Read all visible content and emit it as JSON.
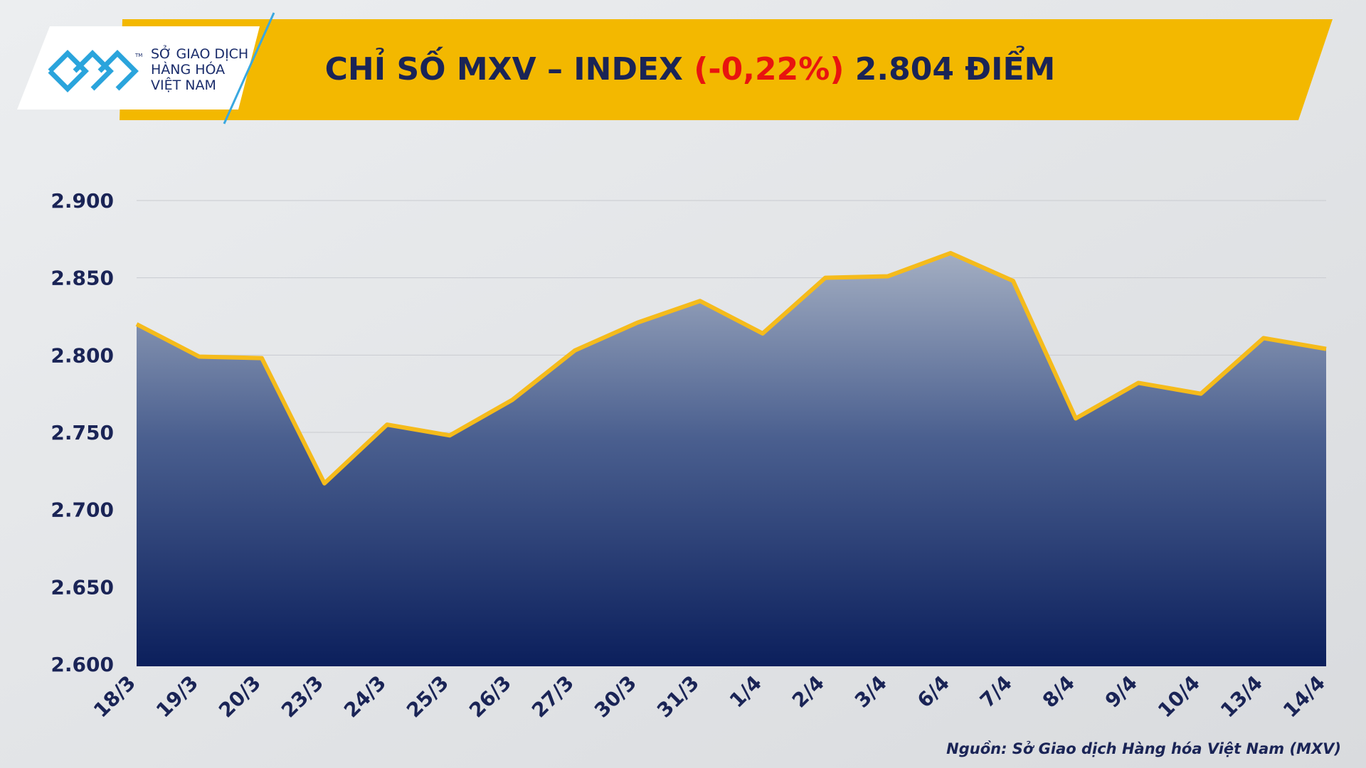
{
  "header": {
    "logo_lines": [
      "SỞ GIAO DỊCH",
      "HÀNG HÓA",
      "VIỆT NAM"
    ],
    "logo_mark": "TM"
  },
  "chart_data": {
    "type": "area",
    "title": {
      "lead": "CHỈ SỐ MXV – INDEX",
      "change": "(-0,22%)",
      "tail": "2.804 ĐIỂM"
    },
    "categories": [
      "18/3",
      "19/3",
      "20/3",
      "23/3",
      "24/3",
      "25/3",
      "26/3",
      "27/3",
      "30/3",
      "31/3",
      "1/4",
      "2/4",
      "3/4",
      "6/4",
      "7/4",
      "8/4",
      "9/4",
      "10/4",
      "13/4",
      "14/4"
    ],
    "values": [
      2.82,
      2.799,
      2.798,
      2.717,
      2.755,
      2.748,
      2.771,
      2.803,
      2.821,
      2.835,
      2.814,
      2.85,
      2.851,
      2.866,
      2.848,
      2.759,
      2.782,
      2.775,
      2.811,
      2.804
    ],
    "color": "#f5bb1b",
    "ylim": [
      2.6,
      2.9
    ],
    "yticks": [
      {
        "value": 2.6,
        "label": "2.600"
      },
      {
        "value": 2.65,
        "label": "2.650"
      },
      {
        "value": 2.7,
        "label": "2.700"
      },
      {
        "value": 2.75,
        "label": "2.750"
      },
      {
        "value": 2.8,
        "label": "2.800"
      },
      {
        "value": 2.85,
        "label": "2.850"
      },
      {
        "value": 2.9,
        "label": "2.900"
      }
    ],
    "grid": true,
    "source": "Nguồn: Sở Giao dịch Hàng hóa Việt Nam (MXV)"
  }
}
